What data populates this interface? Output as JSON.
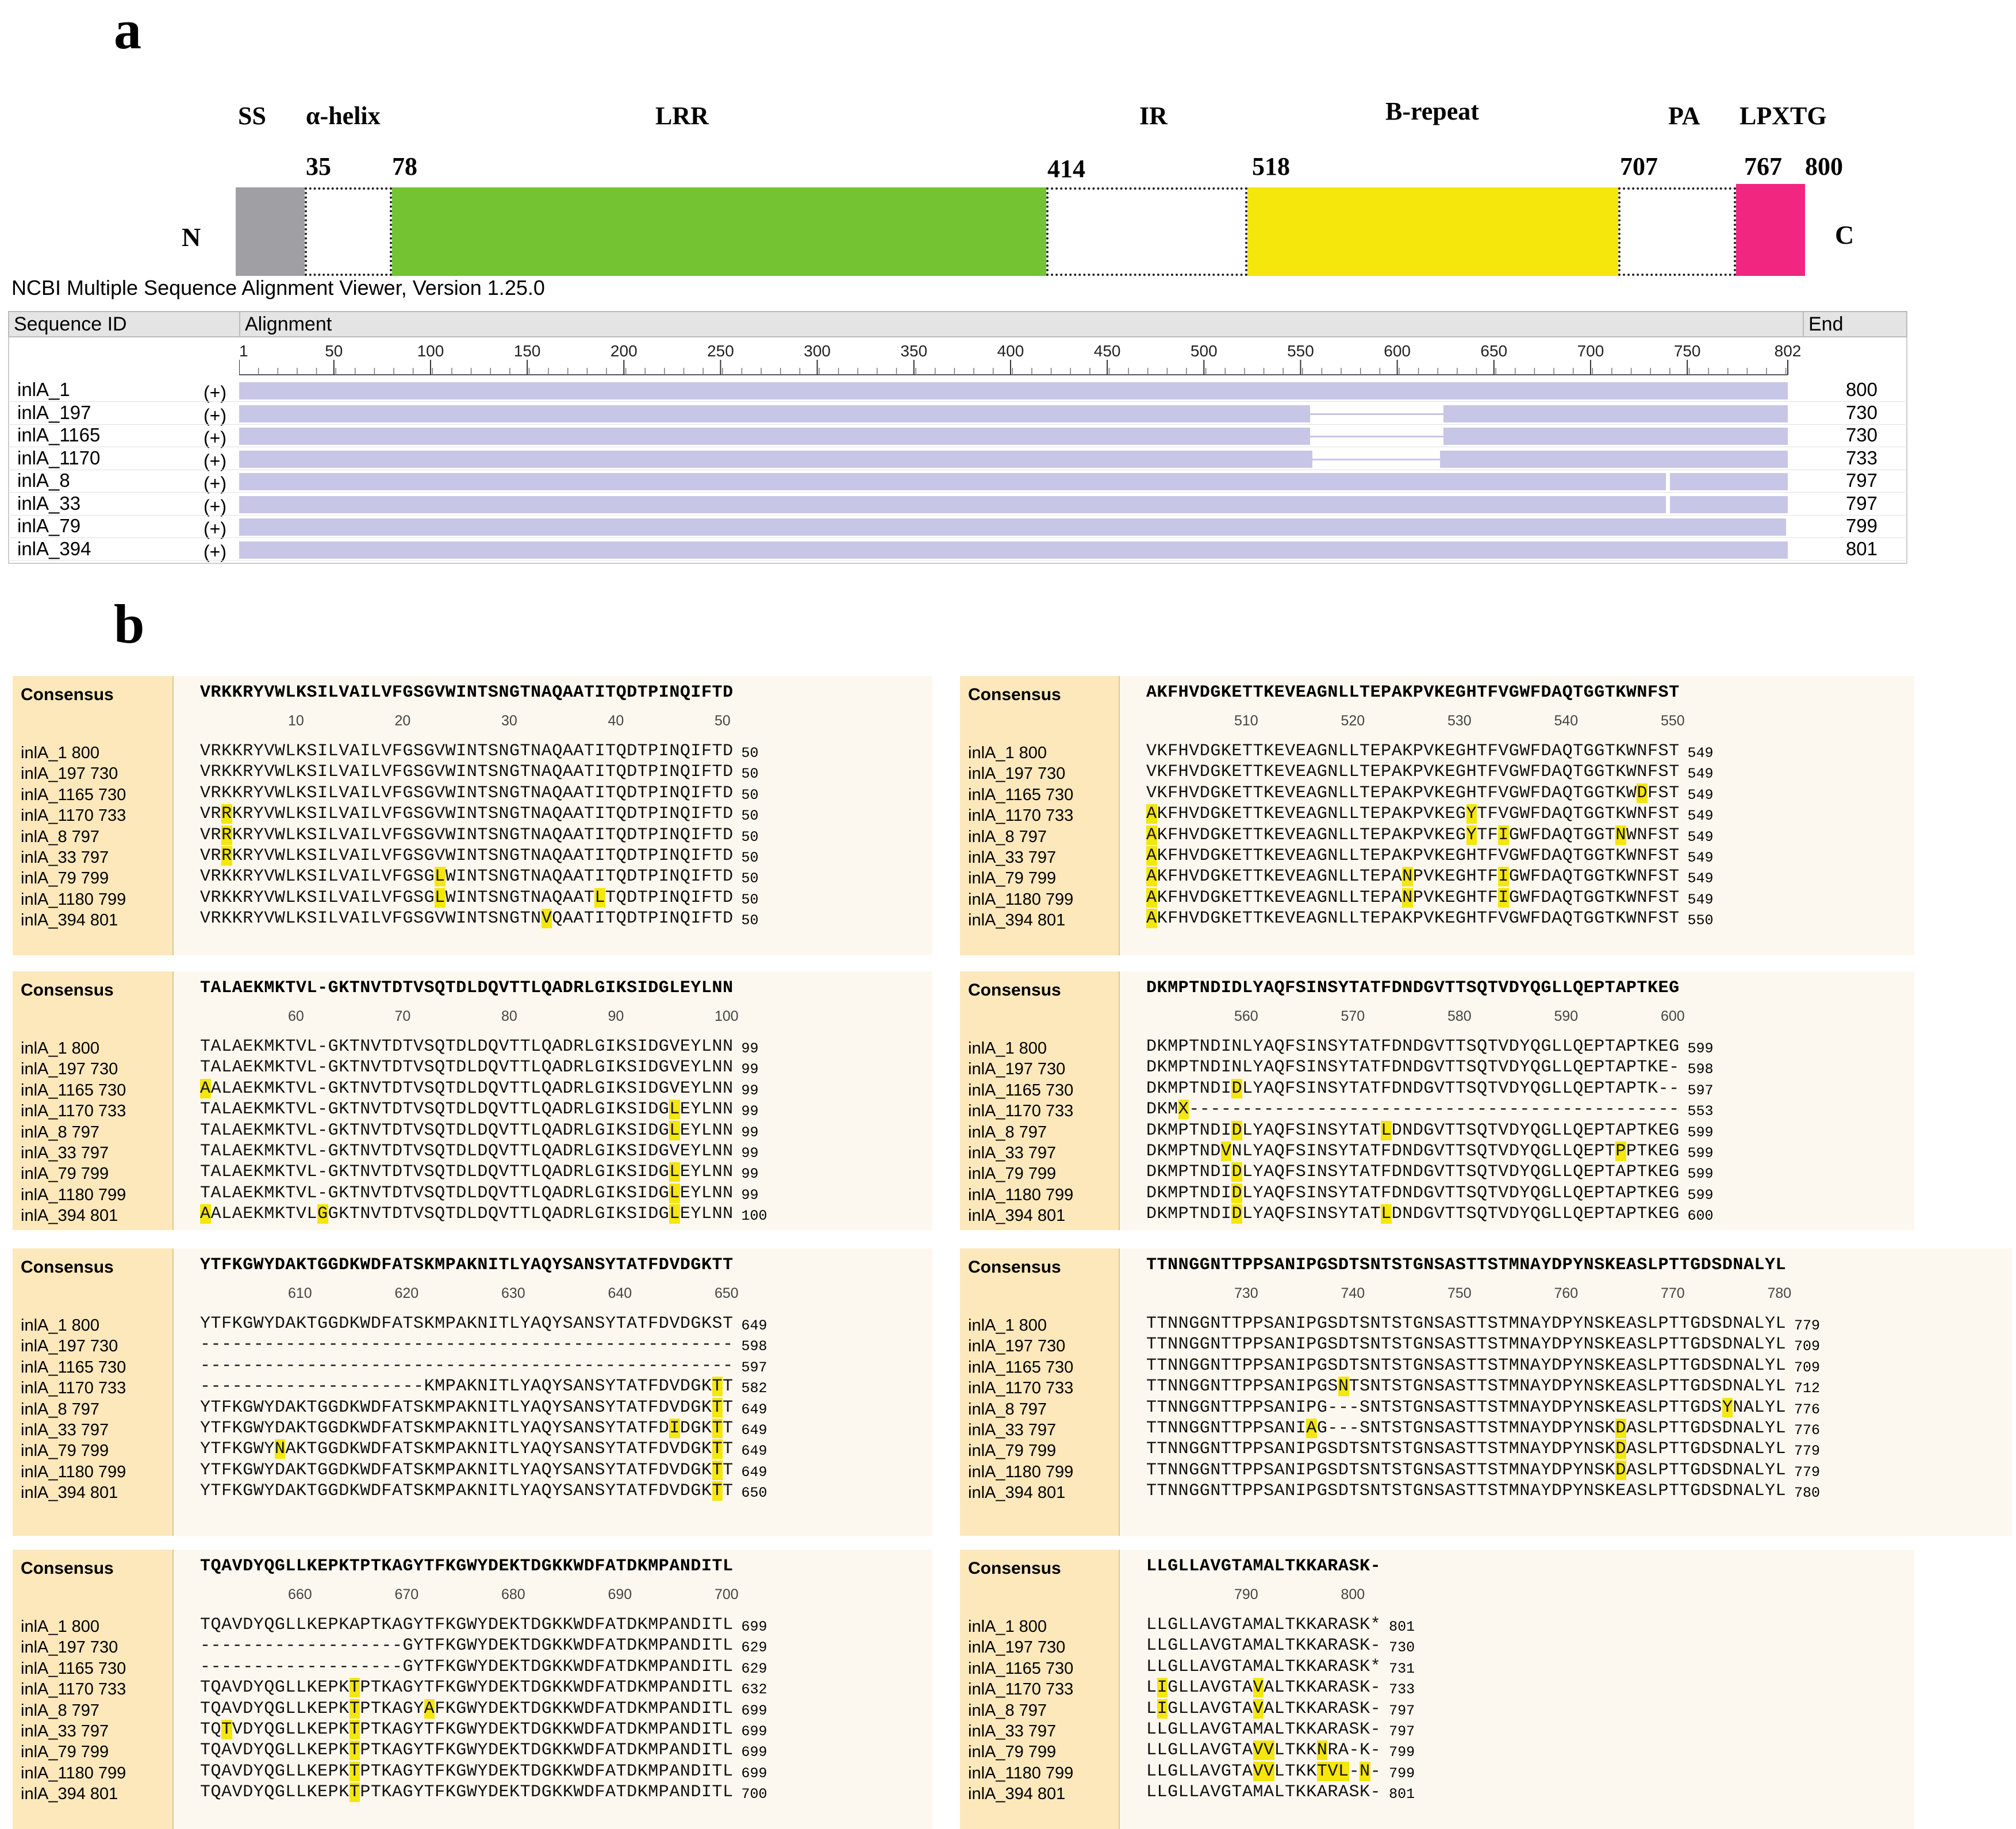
{
  "panel_a": {
    "letter": "a",
    "n_term": "N",
    "c_term": "C",
    "domains": [
      {
        "label": "SS",
        "start": 1,
        "color": "#a09fa3",
        "style": "solid"
      },
      {
        "label": "α-helix",
        "start": 35,
        "color": "#ffffff",
        "style": "dashed"
      },
      {
        "label": "LRR",
        "start": 78,
        "color": "#73c333",
        "style": "solid"
      },
      {
        "label": "IR",
        "start": 414,
        "color": "#ffffff",
        "style": "dashed"
      },
      {
        "label": "B-repeat",
        "start": 518,
        "color": "#f5e60c",
        "style": "solid"
      },
      {
        "label": "PA",
        "start": 707,
        "color": "#ffffff",
        "style": "dashed"
      },
      {
        "label": "LPXTG",
        "start": 767,
        "color": "#f02680",
        "style": "solid"
      }
    ],
    "positions": [
      "35",
      "78",
      "414",
      "518",
      "707",
      "767",
      "800"
    ],
    "viewer": {
      "title": "NCBI Multiple Sequence Alignment Viewer, Version 1.25.0",
      "col_id": "Sequence ID",
      "col_alignment": "Alignment",
      "col_end": "End",
      "axis_ticks": [
        "1",
        "50",
        "100",
        "150",
        "200",
        "250",
        "300",
        "350",
        "400",
        "450",
        "500",
        "550",
        "600",
        "650",
        "700",
        "750",
        "802"
      ],
      "axis_max": 802,
      "rows": [
        {
          "id": "inlA_1",
          "strand": "(+)",
          "end": "800",
          "aln_end": 802,
          "gaps": []
        },
        {
          "id": "inlA_197",
          "strand": "(+)",
          "end": "730",
          "aln_end": 802,
          "gaps": [
            [
              555,
              624
            ]
          ]
        },
        {
          "id": "inlA_1165",
          "strand": "(+)",
          "end": "730",
          "aln_end": 802,
          "gaps": [
            [
              555,
              624
            ]
          ]
        },
        {
          "id": "inlA_1170",
          "strand": "(+)",
          "end": "733",
          "aln_end": 802,
          "gaps": [
            [
              556,
              622
            ]
          ]
        },
        {
          "id": "inlA_8",
          "strand": "(+)",
          "end": "797",
          "aln_end": 802,
          "gaps": [
            [
              739,
              741
            ]
          ]
        },
        {
          "id": "inlA_33",
          "strand": "(+)",
          "end": "797",
          "aln_end": 802,
          "gaps": [
            [
              739,
              741
            ]
          ]
        },
        {
          "id": "inlA_79",
          "strand": "(+)",
          "end": "799",
          "aln_end": 801,
          "gaps": []
        },
        {
          "id": "inlA_394",
          "strand": "(+)",
          "end": "801",
          "aln_end": 802,
          "gaps": []
        }
      ]
    }
  },
  "panel_b": {
    "letter": "b",
    "consensus_label": "Consensus",
    "blocks": [
      {
        "consensus": "VRKKRYVWLKSILVAILVFGSGVWINTSNGTNAQAATITQDTPINQIFTD",
        "ticks": [
          "10",
          "20",
          "30",
          "40",
          "50"
        ],
        "rows": [
          {
            "label": "inlA_1 800",
            "seq": "VRKKRYVWLKSILVAILVFGSGVWINTSNGTNAQAATITQDTPINQIFTD",
            "end": "50",
            "hl": []
          },
          {
            "label": "inlA_197 730",
            "seq": "VRKKRYVWLKSILVAILVFGSGVWINTSNGTNAQAATITQDTPINQIFTD",
            "end": "50",
            "hl": []
          },
          {
            "label": "inlA_1165 730",
            "seq": "VRKKRYVWLKSILVAILVFGSGVWINTSNGTNAQAATITQDTPINQIFTD",
            "end": "50",
            "hl": []
          },
          {
            "label": "inlA_1170 733",
            "seq": "VRRKRYVWLKSILVAILVFGSGVWINTSNGTNAQAATITQDTPINQIFTD",
            "end": "50",
            "hl": [
              2
            ]
          },
          {
            "label": "inlA_8 797",
            "seq": "VRRKRYVWLKSILVAILVFGSGVWINTSNGTNAQAATITQDTPINQIFTD",
            "end": "50",
            "hl": [
              2
            ]
          },
          {
            "label": "inlA_33 797",
            "seq": "VRRKRYVWLKSILVAILVFGSGVWINTSNGTNAQAATITQDTPINQIFTD",
            "end": "50",
            "hl": [
              2
            ]
          },
          {
            "label": "inlA_79 799",
            "seq": "VRKKRYVWLKSILVAILVFGSGLWINTSNGTNAQAATITQDTPINQIFTD",
            "end": "50",
            "hl": [
              22
            ]
          },
          {
            "label": "inlA_1180 799",
            "seq": "VRKKRYVWLKSILVAILVFGSGLWINTSNGTNAQAATLTQDTPINQIFTD",
            "end": "50",
            "hl": [
              22,
              37
            ]
          },
          {
            "label": "inlA_394 801",
            "seq": "VRKKRYVWLKSILVAILVFGSGVWINTSNGTNVQAATITQDTPINQIFTD",
            "end": "50",
            "hl": [
              32
            ]
          }
        ]
      },
      {
        "consensus": "AKFHVDGKETTKEVEAGNLLTEPAKPVKEGHTFVGWFDAQTGGTKWNFST",
        "ticks": [
          "510",
          "520",
          "530",
          "540",
          "550"
        ],
        "rows": [
          {
            "label": "inlA_1 800",
            "seq": "VKFHVDGKETTKEVEAGNLLTEPAKPVKEGHTFVGWFDAQTGGTKWNFST",
            "end": "549",
            "hl": []
          },
          {
            "label": "inlA_197 730",
            "seq": "VKFHVDGKETTKEVEAGNLLTEPAKPVKEGHTFVGWFDAQTGGTKWNFST",
            "end": "549",
            "hl": []
          },
          {
            "label": "inlA_1165 730",
            "seq": "VKFHVDGKETTKEVEAGNLLTEPAKPVKEGHTFVGWFDAQTGGTKWDFST",
            "end": "549",
            "hl": [
              46
            ]
          },
          {
            "label": "inlA_1170 733",
            "seq": "AKFHVDGKETTKEVEAGNLLTEPAKPVKEGYTFVGWFDAQTGGTKWNFST",
            "end": "549",
            "hl": [
              0,
              30
            ]
          },
          {
            "label": "inlA_8 797",
            "seq": "AKFHVDGKETTKEVEAGNLLTEPAKPVKEGYTFIGWFDAQTGGTNWNFST",
            "end": "549",
            "hl": [
              0,
              30,
              33,
              44
            ]
          },
          {
            "label": "inlA_33 797",
            "seq": "AKFHVDGKETTKEVEAGNLLTEPAKPVKEGHTFVGWFDAQTGGTKWNFST",
            "end": "549",
            "hl": [
              0
            ]
          },
          {
            "label": "inlA_79 799",
            "seq": "AKFHVDGKETTKEVEAGNLLTEPANPVKEGHTFIGWFDAQTGGTKWNFST",
            "end": "549",
            "hl": [
              0,
              24,
              33
            ]
          },
          {
            "label": "inlA_1180 799",
            "seq": "AKFHVDGKETTKEVEAGNLLTEPANPVKEGHTFIGWFDAQTGGTKWNFST",
            "end": "549",
            "hl": [
              0,
              24,
              33
            ]
          },
          {
            "label": "inlA_394 801",
            "seq": "AKFHVDGKETTKEVEAGNLLTEPAKPVKEGHTFVGWFDAQTGGTKWNFST",
            "end": "550",
            "hl": [
              0
            ]
          }
        ]
      },
      {
        "consensus": "TALAEKMKTVL-GKTNVTDTVSQTDLDQVTTLQADRLGIKSIDGLEYLNN",
        "ticks": [
          "60",
          "70",
          "80",
          "90",
          "100"
        ],
        "rows": [
          {
            "label": "inlA_1 800",
            "seq": "TALAEKMKTVL-GKTNVTDTVSQTDLDQVTTLQADRLGIKSIDGVEYLNN",
            "end": "99",
            "hl": []
          },
          {
            "label": "inlA_197 730",
            "seq": "TALAEKMKTVL-GKTNVTDTVSQTDLDQVTTLQADRLGIKSIDGVEYLNN",
            "end": "99",
            "hl": []
          },
          {
            "label": "inlA_1165 730",
            "seq": "AALAEKMKTVL-GKTNVTDTVSQTDLDQVTTLQADRLGIKSIDGVEYLNN",
            "end": "99",
            "hl": [
              0
            ]
          },
          {
            "label": "inlA_1170 733",
            "seq": "TALAEKMKTVL-GKTNVTDTVSQTDLDQVTTLQADRLGIKSIDGLEYLNN",
            "end": "99",
            "hl": [
              44
            ]
          },
          {
            "label": "inlA_8 797",
            "seq": "TALAEKMKTVL-GKTNVTDTVSQTDLDQVTTLQADRLGIKSIDGLEYLNN",
            "end": "99",
            "hl": [
              44
            ]
          },
          {
            "label": "inlA_33 797",
            "seq": "TALAEKMKTVL-GKTNVTDTVSQTDLDQVTTLQADRLGIKSIDGVEYLNN",
            "end": "99",
            "hl": []
          },
          {
            "label": "inlA_79 799",
            "seq": "TALAEKMKTVL-GKTNVTDTVSQTDLDQVTTLQADRLGIKSIDGLEYLNN",
            "end": "99",
            "hl": [
              44
            ]
          },
          {
            "label": "inlA_1180 799",
            "seq": "TALAEKMKTVL-GKTNVTDTVSQTDLDQVTTLQADRLGIKSIDGLEYLNN",
            "end": "99",
            "hl": [
              44
            ]
          },
          {
            "label": "inlA_394 801",
            "seq": "AALAEKMKTVLGGKTNVTDTVSQTDLDQVTTLQADRLGIKSIDGLEYLNN",
            "end": "100",
            "hl": [
              0,
              11,
              44
            ]
          }
        ]
      },
      {
        "consensus": "DKMPTNDIDLYAQFSINSYTATFDNDGVTTSQTVDYQGLLQEPTAPTKEG",
        "ticks": [
          "560",
          "570",
          "580",
          "590",
          "600"
        ],
        "rows": [
          {
            "label": "inlA_1 800",
            "seq": "DKMPTNDINLYAQFSINSYTATFDNDGVTTSQTVDYQGLLQEPTAPTKEG",
            "end": "599",
            "hl": []
          },
          {
            "label": "inlA_197 730",
            "seq": "DKMPTNDINLYAQFSINSYTATFDNDGVTTSQTVDYQGLLQEPTAPTKE-",
            "end": "598",
            "hl": []
          },
          {
            "label": "inlA_1165 730",
            "seq": "DKMPTNDIDLYAQFSINSYTATFDNDGVTTSQTVDYQGLLQEPTAPTK--",
            "end": "597",
            "hl": [
              8
            ]
          },
          {
            "label": "inlA_1170 733",
            "seq": "DKMX----------------------------------------------",
            "end": "553",
            "hl": [
              3
            ]
          },
          {
            "label": "inlA_8 797",
            "seq": "DKMPTNDIDLYAQFSINSYTATLDNDGVTTSQTVDYQGLLQEPTAPTKEG",
            "end": "599",
            "hl": [
              8,
              22
            ]
          },
          {
            "label": "inlA_33 797",
            "seq": "DKMPTNDVNLYAQFSINSYTATFDNDGVTTSQTVDYQGLLQEPTPPTKEG",
            "end": "599",
            "hl": [
              7,
              44
            ]
          },
          {
            "label": "inlA_79 799",
            "seq": "DKMPTNDIDLYAQFSINSYTATFDNDGVTTSQTVDYQGLLQEPTAPTKEG",
            "end": "599",
            "hl": [
              8
            ]
          },
          {
            "label": "inlA_1180 799",
            "seq": "DKMPTNDIDLYAQFSINSYTATFDNDGVTTSQTVDYQGLLQEPTAPTKEG",
            "end": "599",
            "hl": [
              8
            ]
          },
          {
            "label": "inlA_394 801",
            "seq": "DKMPTNDIDLYAQFSINSYTATLDNDGVTTSQTVDYQGLLQEPTAPTKEG",
            "end": "600",
            "hl": [
              8,
              22
            ]
          }
        ]
      },
      {
        "consensus": "YTFKGWYDAKTGGDKWDFATSKMPAKNITLYAQYSANSYTATFDVDGKTT",
        "ticks": [
          "610",
          "620",
          "630",
          "640",
          "650"
        ],
        "rows": [
          {
            "label": "inlA_1 800",
            "seq": "YTFKGWYDAKTGGDKWDFATSKMPAKNITLYAQYSANSYTATFDVDGKST",
            "end": "649",
            "hl": []
          },
          {
            "label": "inlA_197 730",
            "seq": "--------------------------------------------------",
            "end": "598",
            "hl": []
          },
          {
            "label": "inlA_1165 730",
            "seq": "--------------------------------------------------",
            "end": "597",
            "hl": []
          },
          {
            "label": "inlA_1170 733",
            "seq": "---------------------KMPAKNITLYAQYSANSYTATFDVDGKTT",
            "end": "582",
            "hl": [
              48
            ]
          },
          {
            "label": "inlA_8 797",
            "seq": "YTFKGWYDAKTGGDKWDFATSKMPAKNITLYAQYSANSYTATFDVDGKTT",
            "end": "649",
            "hl": [
              48
            ]
          },
          {
            "label": "inlA_33 797",
            "seq": "YTFKGWYDAKTGGDKWDFATSKMPAKNITLYAQYSANSYTATFDIDGKTT",
            "end": "649",
            "hl": [
              44,
              48
            ]
          },
          {
            "label": "inlA_79 799",
            "seq": "YTFKGWYNAKTGGDKWDFATSKMPAKNITLYAQYSANSYTATFDVDGKTT",
            "end": "649",
            "hl": [
              7,
              48
            ]
          },
          {
            "label": "inlA_1180 799",
            "seq": "YTFKGWYDAKTGGDKWDFATSKMPAKNITLYAQYSANSYTATFDVDGKTT",
            "end": "649",
            "hl": [
              48
            ]
          },
          {
            "label": "inlA_394 801",
            "seq": "YTFKGWYDAKTGGDKWDFATSKMPAKNITLYAQYSANSYTATFDVDGKTT",
            "end": "650",
            "hl": [
              48
            ]
          }
        ]
      },
      {
        "consensus": "TTNNGGNTTPPSANIPGSDTSNTSTGNSASTTSTMNAYDPYNSKEASLPTTGDSDNALYL",
        "ticks": [
          "730",
          "740",
          "750",
          "760",
          "770",
          "780"
        ],
        "rows": [
          {
            "label": "inlA_1 800",
            "seq": "TTNNGGNTTPPSANIPGSDTSNTSTGNSASTTSTMNAYDPYNSKEASLPTTGDSDNALYL",
            "end": "779",
            "hl": []
          },
          {
            "label": "inlA_197 730",
            "seq": "TTNNGGNTTPPSANIPGSDTSNTSTGNSASTTSTMNAYDPYNSKEASLPTTGDSDNALYL",
            "end": "709",
            "hl": []
          },
          {
            "label": "inlA_1165 730",
            "seq": "TTNNGGNTTPPSANIPGSDTSNTSTGNSASTTSTMNAYDPYNSKEASLPTTGDSDNALYL",
            "end": "709",
            "hl": []
          },
          {
            "label": "inlA_1170 733",
            "seq": "TTNNGGNTTPPSANIPGSNTSNTSTGNSASTTSTMNAYDPYNSKEASLPTTGDSDNALYL",
            "end": "712",
            "hl": [
              18
            ]
          },
          {
            "label": "inlA_8 797",
            "seq": "TTNNGGNTTPPSANIPG---SNTSTGNSASTTSTMNAYDPYNSKEASLPTTGDSYNALYL",
            "end": "776",
            "hl": [
              54
            ]
          },
          {
            "label": "inlA_33 797",
            "seq": "TTNNGGNTTPPSANIAG---SNTSTGNSASTTSTMNAYDPYNSKDASLPTTGDSDNALYL",
            "end": "776",
            "hl": [
              15,
              44
            ]
          },
          {
            "label": "inlA_79 799",
            "seq": "TTNNGGNTTPPSANIPGSDTSNTSTGNSASTTSTMNAYDPYNSKDASLPTTGDSDNALYL",
            "end": "779",
            "hl": [
              44
            ]
          },
          {
            "label": "inlA_1180 799",
            "seq": "TTNNGGNTTPPSANIPGSDTSNTSTGNSASTTSTMNAYDPYNSKDASLPTTGDSDNALYL",
            "end": "779",
            "hl": [
              44
            ]
          },
          {
            "label": "inlA_394 801",
            "seq": "TTNNGGNTTPPSANIPGSDTSNTSTGNSASTTSTMNAYDPYNSKEASLPTTGDSDNALYL",
            "end": "780",
            "hl": []
          }
        ]
      },
      {
        "consensus": "TQAVDYQGLLKEPKTPTKAGYTFKGWYDEKTDGKKWDFATDKMPANDITL",
        "ticks": [
          "660",
          "670",
          "680",
          "690",
          "700"
        ],
        "rows": [
          {
            "label": "inlA_1 800",
            "seq": "TQAVDYQGLLKEPKAPTKAGYTFKGWYDEKTDGKKWDFATDKMPANDITL",
            "end": "699",
            "hl": []
          },
          {
            "label": "inlA_197 730",
            "seq": "-------------------GYTFKGWYDEKTDGKKWDFATDKMPANDITL",
            "end": "629",
            "hl": []
          },
          {
            "label": "inlA_1165 730",
            "seq": "-------------------GYTFKGWYDEKTDGKKWDFATDKMPANDITL",
            "end": "629",
            "hl": []
          },
          {
            "label": "inlA_1170 733",
            "seq": "TQAVDYQGLLKEPKTPTKAGYTFKGWYDEKTDGKKWDFATDKMPANDITL",
            "end": "632",
            "hl": [
              14
            ]
          },
          {
            "label": "inlA_8 797",
            "seq": "TQAVDYQGLLKEPKTPTKAGYAFKGWYDEKTDGKKWDFATDKMPANDITL",
            "end": "699",
            "hl": [
              14,
              21
            ]
          },
          {
            "label": "inlA_33 797",
            "seq": "TQTVDYQGLLKEPKTPTKAGYTFKGWYDEKTDGKKWDFATDKMPANDITL",
            "end": "699",
            "hl": [
              2,
              14
            ]
          },
          {
            "label": "inlA_79 799",
            "seq": "TQAVDYQGLLKEPKTPTKAGYTFKGWYDEKTDGKKWDFATDKMPANDITL",
            "end": "699",
            "hl": [
              14
            ]
          },
          {
            "label": "inlA_1180 799",
            "seq": "TQAVDYQGLLKEPKTPTKAGYTFKGWYDEKTDGKKWDFATDKMPANDITL",
            "end": "699",
            "hl": [
              14
            ]
          },
          {
            "label": "inlA_394 801",
            "seq": "TQAVDYQGLLKEPKTPTKAGYTFKGWYDEKTDGKKWDFATDKMPANDITL",
            "end": "700",
            "hl": [
              14
            ]
          }
        ]
      },
      {
        "consensus": "LLGLLAVGTAMALTKKARASK-",
        "ticks": [
          "790",
          "800"
        ],
        "rows": [
          {
            "label": "inlA_1 800",
            "seq": "LLGLLAVGTAMALTKKARASK*",
            "end": "801",
            "hl": []
          },
          {
            "label": "inlA_197 730",
            "seq": "LLGLLAVGTAMALTKKARASK-",
            "end": "730",
            "hl": []
          },
          {
            "label": "inlA_1165 730",
            "seq": "LLGLLAVGTAMALTKKARASK*",
            "end": "731",
            "hl": []
          },
          {
            "label": "inlA_1170 733",
            "seq": "LIGLLAVGTAVALTKKARASK-",
            "end": "733",
            "hl": [
              1,
              10
            ]
          },
          {
            "label": "inlA_8 797",
            "seq": "LIGLLAVGTAVALTKKARASK-",
            "end": "797",
            "hl": [
              1,
              10
            ]
          },
          {
            "label": "inlA_33 797",
            "seq": "LLGLLAVGTAMALTKKARASK-",
            "end": "797",
            "hl": []
          },
          {
            "label": "inlA_79 799",
            "seq": "LLGLLAVGTAVVLTKKNRA-K-",
            "end": "799",
            "hl": [
              10,
              11,
              16
            ]
          },
          {
            "label": "inlA_1180 799",
            "seq": "LLGLLAVGTAVVLTKKTVL-N-",
            "end": "799",
            "hl": [
              10,
              11,
              16,
              17,
              18,
              20
            ]
          },
          {
            "label": "inlA_394 801",
            "seq": "LLGLLAVGTAMALTKKARASK-",
            "end": "801",
            "hl": []
          }
        ]
      }
    ]
  }
}
